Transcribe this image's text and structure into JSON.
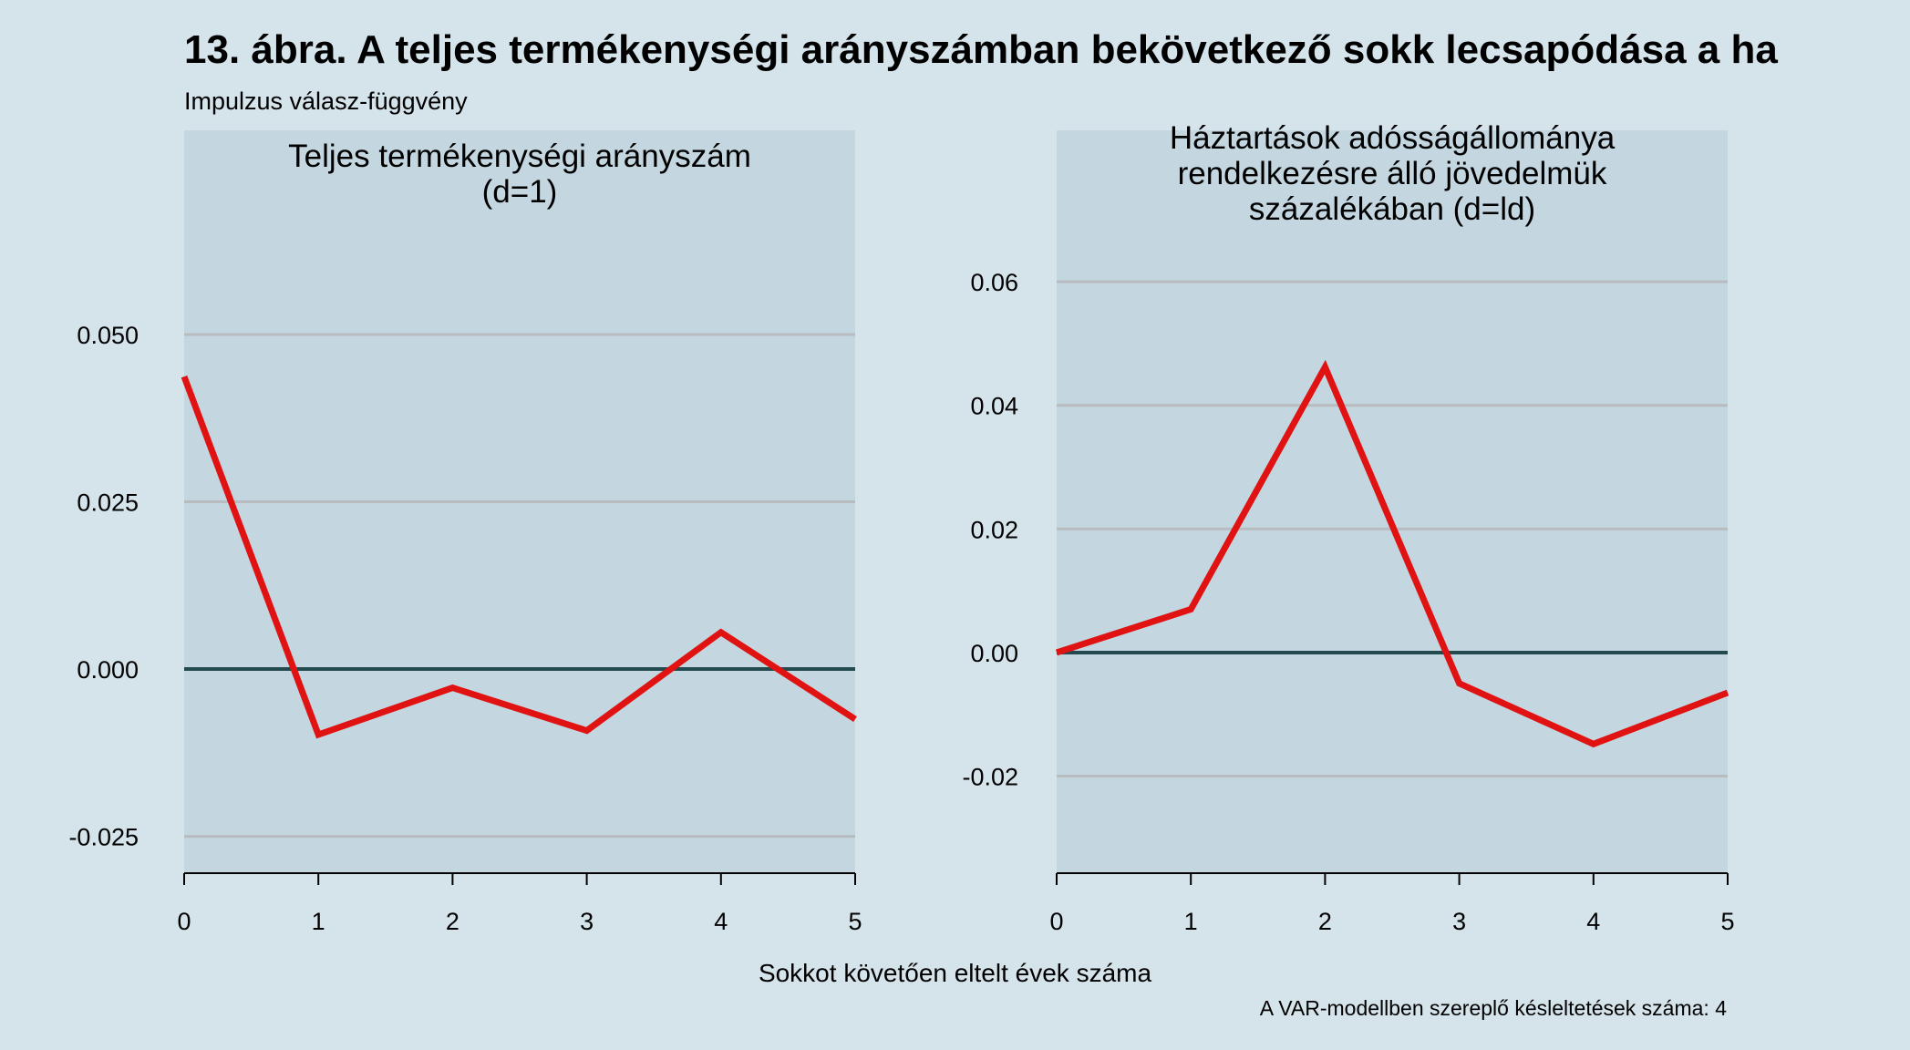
{
  "title": "13. ábra. A teljes termékenységi arányszámban bekövetkező sokk lecsapódása a ha",
  "subtitle": "Impulzus válasz-függvény",
  "xlabel": "Sokkot követően eltelt évek száma",
  "caption": "A VAR-modellben szereplő késleltetések száma: 4",
  "colors": {
    "background": "#d5e3eb",
    "panel": "#c4d6df",
    "grid": "#b8bcc0",
    "zero_line": "#234a4e",
    "series": "#e01212"
  },
  "chart_data": [
    {
      "type": "line",
      "title": [
        "Teljes termékenységi arányszám",
        "(d=1)"
      ],
      "x": [
        0,
        1,
        2,
        3,
        4,
        5
      ],
      "xticks": [
        "0",
        "1",
        "2",
        "3",
        "4",
        "5"
      ],
      "xlim": [
        0,
        5
      ],
      "ylim": [
        -0.0305,
        0.0805
      ],
      "yticks": [
        -0.025,
        0.0,
        0.025,
        0.05
      ],
      "ytick_labels": [
        "-0.025",
        "0.000",
        "0.025",
        "0.050"
      ],
      "series": [
        {
          "name": "impulse_response",
          "values": [
            0.0437,
            -0.0098,
            -0.0028,
            -0.0092,
            0.0055,
            -0.0075
          ]
        }
      ],
      "zero_line": true
    },
    {
      "type": "line",
      "title": [
        "Háztartások adósságállománya",
        "rendelkezésre álló jövedelmük",
        "százalékában (d=ld)"
      ],
      "x": [
        0,
        1,
        2,
        3,
        4,
        5
      ],
      "xticks": [
        "0",
        "1",
        "2",
        "3",
        "4",
        "5"
      ],
      "xlim": [
        0,
        5
      ],
      "ylim": [
        -0.0357,
        0.0845
      ],
      "yticks": [
        -0.02,
        0.0,
        0.02,
        0.04,
        0.06
      ],
      "ytick_labels": [
        "-0.02",
        "0.00",
        "0.02",
        "0.04",
        "0.06"
      ],
      "series": [
        {
          "name": "impulse_response",
          "values": [
            0.0,
            0.007,
            0.0462,
            -0.005,
            -0.0148,
            -0.0065
          ]
        }
      ],
      "zero_line": true
    }
  ]
}
